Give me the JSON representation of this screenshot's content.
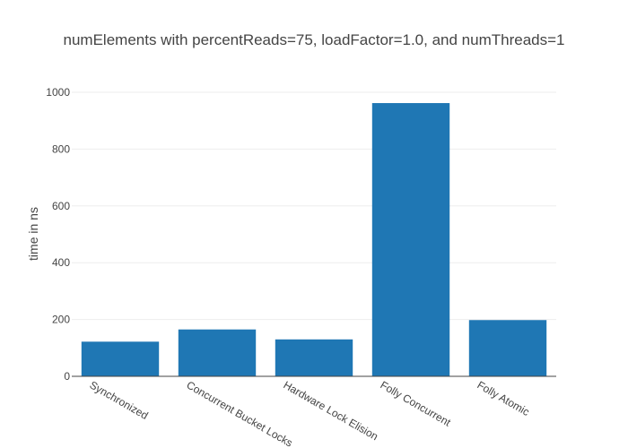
{
  "chart_data": {
    "type": "bar",
    "title": "numElements with percentReads=75, loadFactor=1.0, and numThreads=1",
    "xlabel": "",
    "ylabel": "time in ns",
    "categories": [
      "Synchronized",
      "Concurrent Bucket Locks",
      "Hardware Lock Elision",
      "Folly Concurrent",
      "Folly Atomic"
    ],
    "values": [
      122,
      165,
      130,
      962,
      198
    ],
    "ylim": [
      0,
      1000
    ],
    "yticks": [
      0,
      200,
      400,
      600,
      800,
      1000
    ],
    "grid": true,
    "legend": "none",
    "bar_color": "#1f77b4"
  }
}
